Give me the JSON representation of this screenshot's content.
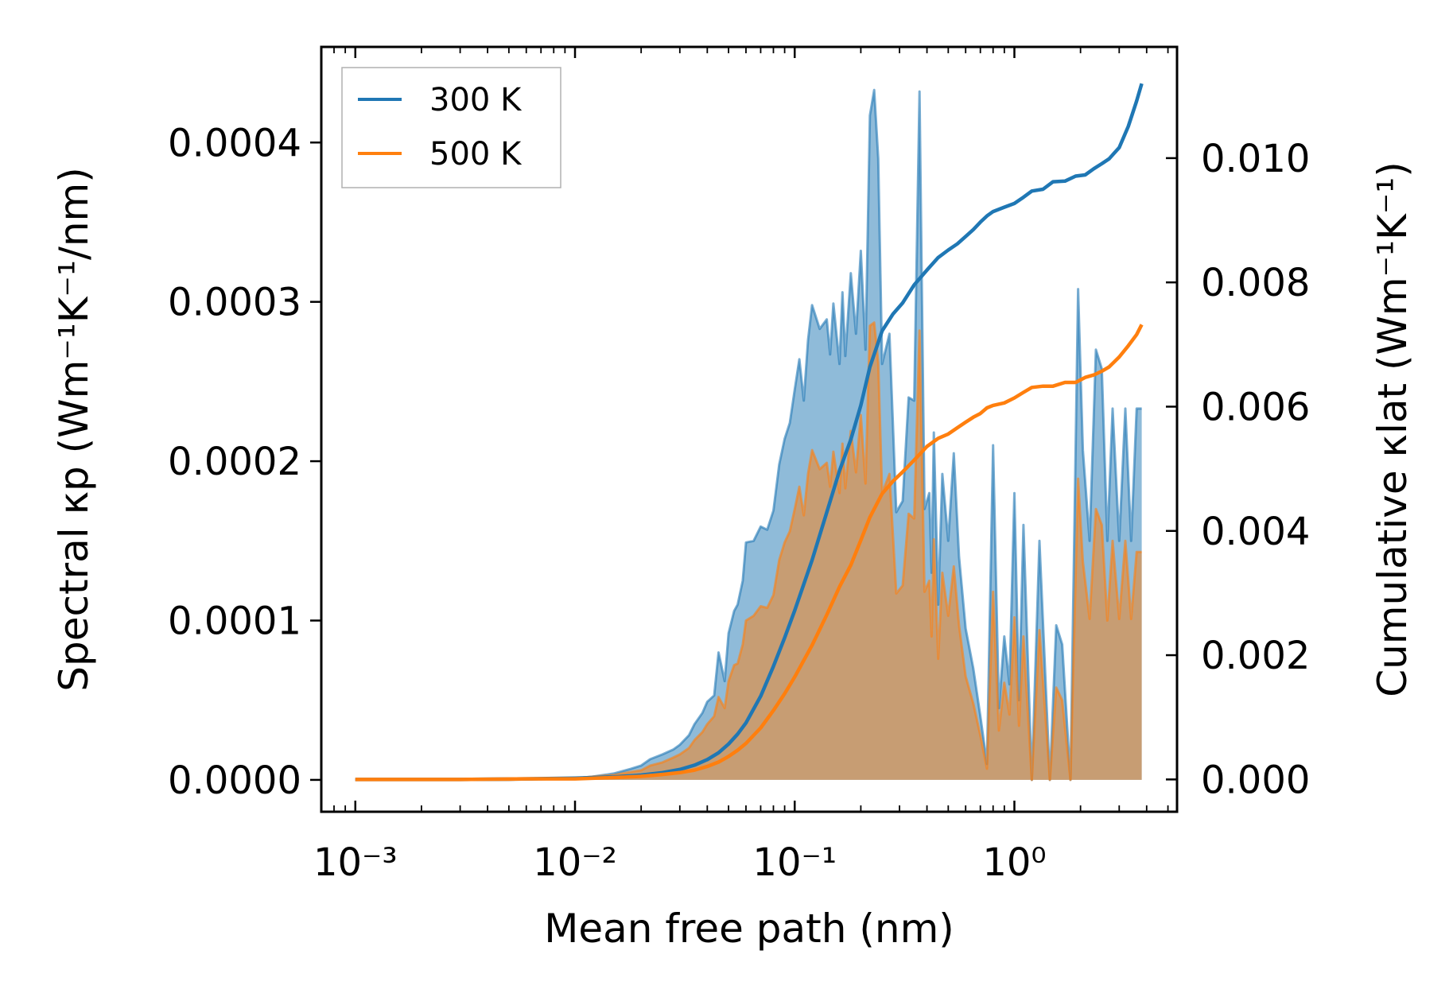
{
  "chart_data": {
    "type": "line",
    "xscale": "log",
    "xlim": [
      0.0007,
      5.5
    ],
    "xlabel": "Mean free path (nm)",
    "ylabel_left": "Spectral κp (Wm⁻¹K⁻¹/nm)",
    "ylabel_right": "Cumulative κlat (Wm⁻¹K⁻¹)",
    "ylim_left": [
      -2e-05,
      0.00046
    ],
    "ylim_right": [
      -0.00052,
      0.01179
    ],
    "x_ticks": [
      {
        "value": 0.001,
        "label": "10⁻³"
      },
      {
        "value": 0.01,
        "label": "10⁻²"
      },
      {
        "value": 0.1,
        "label": "10⁻¹"
      },
      {
        "value": 1,
        "label": "10⁰"
      }
    ],
    "y_left_ticks": [
      {
        "value": 0.0,
        "label": "0.0000"
      },
      {
        "value": 0.0001,
        "label": "0.0001"
      },
      {
        "value": 0.0002,
        "label": "0.0002"
      },
      {
        "value": 0.0003,
        "label": "0.0003"
      },
      {
        "value": 0.0004,
        "label": "0.0004"
      }
    ],
    "y_right_ticks": [
      {
        "value": 0.0,
        "label": "0.000"
      },
      {
        "value": 0.002,
        "label": "0.002"
      },
      {
        "value": 0.004,
        "label": "0.004"
      },
      {
        "value": 0.006,
        "label": "0.006"
      },
      {
        "value": 0.008,
        "label": "0.008"
      },
      {
        "value": 0.01,
        "label": "0.010"
      }
    ],
    "legend": {
      "position": "top-left",
      "entries": [
        "300 K",
        "500 K"
      ]
    },
    "series": [
      {
        "name": "300 K",
        "color": "#1f77b4",
        "fill_color": "#1f77b4",
        "fill_opacity": 0.5,
        "spectral": {
          "x": [
            0.001,
            0.005,
            0.01,
            0.012,
            0.015,
            0.018,
            0.02,
            0.022,
            0.025,
            0.028,
            0.03,
            0.033,
            0.035,
            0.038,
            0.04,
            0.043,
            0.045,
            0.048,
            0.05,
            0.053,
            0.055,
            0.058,
            0.06,
            0.065,
            0.07,
            0.075,
            0.08,
            0.085,
            0.09,
            0.095,
            0.1,
            0.105,
            0.11,
            0.115,
            0.12,
            0.13,
            0.14,
            0.145,
            0.15,
            0.16,
            0.165,
            0.17,
            0.18,
            0.19,
            0.2,
            0.21,
            0.22,
            0.23,
            0.24,
            0.25,
            0.27,
            0.29,
            0.31,
            0.33,
            0.35,
            0.37,
            0.39,
            0.41,
            0.42,
            0.43,
            0.45,
            0.47,
            0.5,
            0.53,
            0.56,
            0.6,
            0.65,
            0.7,
            0.75,
            0.8,
            0.85,
            0.9,
            0.95,
            1.0,
            1.05,
            1.1,
            1.2,
            1.3,
            1.45,
            1.55,
            1.65,
            1.8,
            1.95,
            2.05,
            2.2,
            2.35,
            2.5,
            2.65,
            2.8,
            3.0,
            3.2,
            3.4,
            3.6,
            3.8
          ],
          "y": [
            0,
            0,
            1e-06,
            2e-06,
            4e-06,
            7e-06,
            9e-06,
            1.3e-05,
            1.6e-05,
            1.9e-05,
            2.2e-05,
            2.8e-05,
            3.5e-05,
            4.2e-05,
            4.9e-05,
            5.3e-05,
            8e-05,
            6.2e-05,
            9.2e-05,
            0.000106,
            0.00011,
            0.000125,
            0.000149,
            0.00015,
            0.000159,
            0.000157,
            0.000169,
            0.000198,
            0.000214,
            0.000224,
            0.000245,
            0.000264,
            0.000238,
            0.000276,
            0.000298,
            0.000283,
            0.000289,
            0.000267,
            0.000299,
            0.000261,
            0.000306,
            0.000266,
            0.000318,
            0.00028,
            0.000332,
            0.00027,
            0.000417,
            0.000433,
            0.00039,
            0.000261,
            0.00028,
            0.000168,
            0.000175,
            0.00024,
            0.000238,
            0.000432,
            0.00017,
            0.00018,
            0.00013,
            0.000218,
            0.00011,
            0.000192,
            0.00015,
            0.000205,
            0.00014,
            9.5e-05,
            7e-05,
            4e-05,
            1e-05,
            0.00021,
            4.5e-05,
            9e-05,
            6e-05,
            0.00018,
            5e-05,
            0.00016,
            0.0,
            0.00015,
            0.0,
            9.7e-05,
            8.5e-05,
            0.0,
            0.000308,
            0.000207,
            0.00015,
            0.00027,
            0.000258,
            0.00015,
            0.000233,
            0.00015,
            0.000233,
            0.00015,
            0.000233,
            0.000233
          ]
        },
        "cumulative": {
          "x": [
            0.001,
            0.003,
            0.006,
            0.01,
            0.015,
            0.02,
            0.025,
            0.03,
            0.035,
            0.04,
            0.045,
            0.05,
            0.055,
            0.06,
            0.07,
            0.08,
            0.09,
            0.1,
            0.12,
            0.14,
            0.16,
            0.18,
            0.2,
            0.22,
            0.25,
            0.28,
            0.31,
            0.35,
            0.4,
            0.45,
            0.5,
            0.55,
            0.6,
            0.65,
            0.7,
            0.75,
            0.8,
            0.9,
            1.0,
            1.1,
            1.2,
            1.35,
            1.5,
            1.7,
            1.9,
            2.1,
            2.3,
            2.5,
            2.7,
            3.0,
            3.3,
            3.6,
            3.8
          ],
          "y": [
            0,
            0,
            1e-05,
            2e-05,
            4e-05,
            7e-05,
            0.00011,
            0.00016,
            0.00023,
            0.00032,
            0.00043,
            0.00057,
            0.00073,
            0.00091,
            0.00134,
            0.00182,
            0.00228,
            0.00272,
            0.00353,
            0.0043,
            0.00497,
            0.00547,
            0.00602,
            0.00664,
            0.00722,
            0.00749,
            0.00767,
            0.00796,
            0.0082,
            0.0084,
            0.00852,
            0.00862,
            0.00874,
            0.00885,
            0.00897,
            0.00907,
            0.00914,
            0.00921,
            0.00927,
            0.00937,
            0.00947,
            0.0095,
            0.00962,
            0.00963,
            0.00971,
            0.00973,
            0.00983,
            0.00991,
            0.00999,
            0.01017,
            0.01051,
            0.01092,
            0.0112
          ]
        }
      },
      {
        "name": "500 K",
        "color": "#ff7f0e",
        "fill_color": "#ff7f0e",
        "fill_opacity": 0.5,
        "spectral": {
          "x": [
            0.001,
            0.005,
            0.01,
            0.012,
            0.015,
            0.018,
            0.02,
            0.022,
            0.025,
            0.028,
            0.03,
            0.033,
            0.035,
            0.038,
            0.04,
            0.043,
            0.045,
            0.048,
            0.05,
            0.053,
            0.055,
            0.058,
            0.06,
            0.065,
            0.07,
            0.075,
            0.08,
            0.085,
            0.09,
            0.095,
            0.1,
            0.105,
            0.11,
            0.115,
            0.12,
            0.13,
            0.14,
            0.145,
            0.15,
            0.16,
            0.165,
            0.17,
            0.18,
            0.19,
            0.2,
            0.21,
            0.22,
            0.23,
            0.24,
            0.25,
            0.27,
            0.29,
            0.31,
            0.33,
            0.35,
            0.37,
            0.39,
            0.41,
            0.42,
            0.43,
            0.45,
            0.47,
            0.5,
            0.53,
            0.56,
            0.6,
            0.65,
            0.7,
            0.75,
            0.8,
            0.85,
            0.9,
            0.95,
            1.0,
            1.05,
            1.1,
            1.2,
            1.3,
            1.45,
            1.55,
            1.65,
            1.8,
            1.95,
            2.05,
            2.2,
            2.35,
            2.5,
            2.65,
            2.8,
            3.0,
            3.2,
            3.4,
            3.6,
            3.8
          ],
          "y": [
            0,
            0,
            1e-06,
            2e-06,
            3e-06,
            5e-06,
            6e-06,
            9e-06,
            1.1e-05,
            1.4e-05,
            1.6e-05,
            2e-05,
            2.5e-05,
            3e-05,
            3.5e-05,
            4e-05,
            5.2e-05,
            4.5e-05,
            6.2e-05,
            7.2e-05,
            7.3e-05,
            8.5e-05,
            0.0001,
            0.000103,
            0.000109,
            0.000108,
            0.000116,
            0.000138,
            0.000149,
            0.000156,
            0.00017,
            0.000184,
            0.000166,
            0.000192,
            0.000207,
            0.000195,
            0.000199,
            0.000184,
            0.000206,
            0.00018,
            0.000211,
            0.000183,
            0.000219,
            0.000193,
            0.000229,
            0.000186,
            0.000285,
            0.000287,
            0.000262,
            0.00018,
            0.000192,
            0.000117,
            0.000122,
            0.000167,
            0.000164,
            0.000282,
            0.000118,
            0.000125,
            9e-05,
            0.000151,
            7.6e-05,
            0.00013,
            0.000103,
            0.000134,
            9.7e-05,
            6.5e-05,
            4.8e-05,
            2.8e-05,
            7e-06,
            0.000118,
            3.1e-05,
            6.1e-05,
            4.1e-05,
            0.000102,
            3.4e-05,
            9e-05,
            0.0,
            9.4e-05,
            0.0,
            5.8e-05,
            5e-05,
            0.0,
            0.000189,
            0.000137,
            0.000101,
            0.00017,
            0.00016,
            0.0001,
            0.00015,
            0.000101,
            0.00015,
            0.000101,
            0.000143,
            0.000143
          ]
        },
        "cumulative": {
          "x": [
            0.001,
            0.003,
            0.006,
            0.01,
            0.015,
            0.02,
            0.025,
            0.03,
            0.035,
            0.04,
            0.045,
            0.05,
            0.055,
            0.06,
            0.07,
            0.08,
            0.09,
            0.1,
            0.12,
            0.14,
            0.16,
            0.18,
            0.2,
            0.22,
            0.25,
            0.28,
            0.31,
            0.35,
            0.4,
            0.45,
            0.5,
            0.55,
            0.6,
            0.65,
            0.7,
            0.75,
            0.8,
            0.9,
            1.0,
            1.1,
            1.2,
            1.35,
            1.5,
            1.7,
            1.9,
            2.1,
            2.3,
            2.5,
            2.7,
            3.0,
            3.3,
            3.6,
            3.8
          ],
          "y": [
            0,
            0,
            1e-05,
            1e-05,
            3e-05,
            5e-05,
            8e-05,
            0.00011,
            0.00015,
            0.00021,
            0.00028,
            0.00037,
            0.00047,
            0.00058,
            0.00083,
            0.00111,
            0.00138,
            0.00165,
            0.00216,
            0.00265,
            0.0031,
            0.00345,
            0.00385,
            0.00422,
            0.0046,
            0.0048,
            0.00495,
            0.00514,
            0.00536,
            0.00549,
            0.00556,
            0.00566,
            0.00575,
            0.00583,
            0.00589,
            0.00598,
            0.00602,
            0.00606,
            0.00614,
            0.00623,
            0.00631,
            0.00633,
            0.00633,
            0.00639,
            0.00639,
            0.00647,
            0.00651,
            0.00657,
            0.00664,
            0.0068,
            0.00698,
            0.00716,
            0.00732
          ]
        }
      }
    ]
  }
}
